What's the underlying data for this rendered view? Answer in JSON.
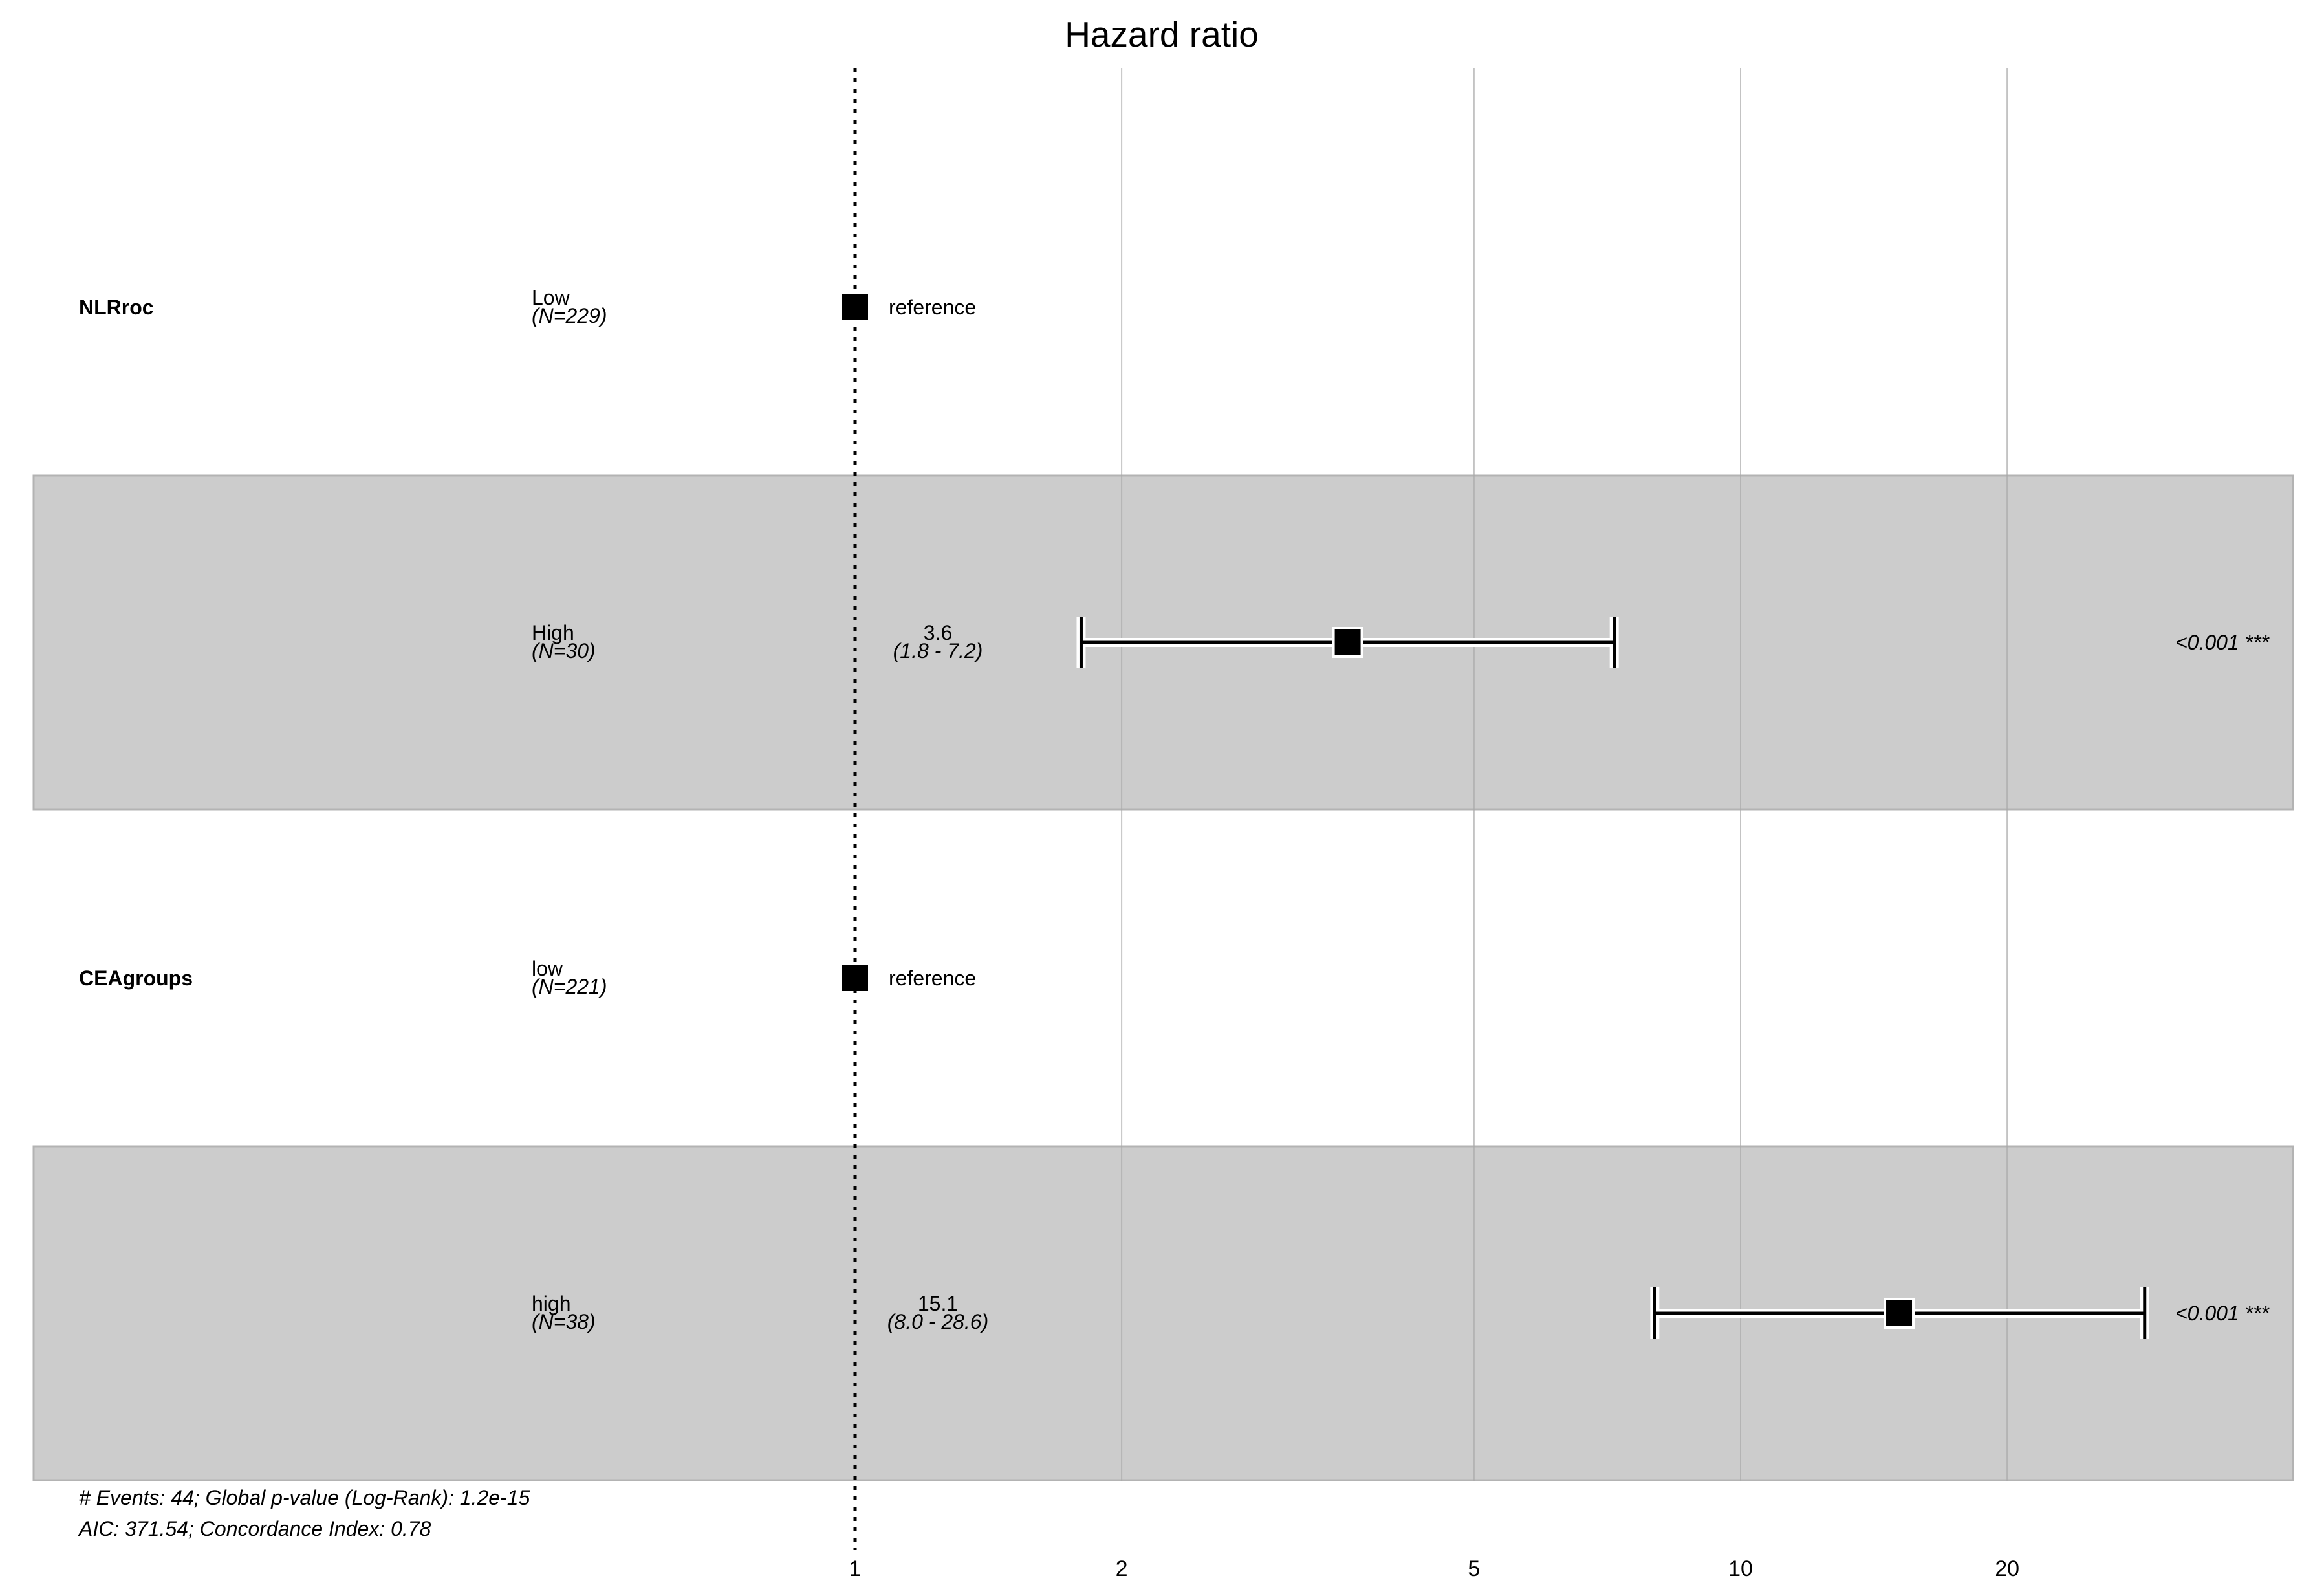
{
  "chart_data": {
    "type": "forest",
    "title": "Hazard ratio",
    "x_scale": "log",
    "x_ticks": [
      1,
      2,
      5,
      10,
      20
    ],
    "x_tick_labels": [
      "1",
      "2",
      "5",
      "10",
      "20"
    ],
    "reference_line": 1,
    "rows": [
      {
        "variable": "NLRroc",
        "level": "Low",
        "n": "(N=229)",
        "hr": 1,
        "is_reference": true,
        "reference_label": "reference",
        "shaded": false
      },
      {
        "variable": "",
        "level": "High",
        "n": "(N=30)",
        "hr": 3.6,
        "lower": 1.8,
        "upper": 7.2,
        "hr_label": "3.6",
        "ci_label": "(1.8 - 7.2)",
        "p_label": "<0.001 ***",
        "is_reference": false,
        "shaded": true
      },
      {
        "variable": "CEAgroups",
        "level": "low",
        "n": "(N=221)",
        "hr": 1,
        "is_reference": true,
        "reference_label": "reference",
        "shaded": false
      },
      {
        "variable": "",
        "level": "high",
        "n": "(N=38)",
        "hr": 15.1,
        "lower": 8.0,
        "upper": 28.6,
        "hr_label": "15.1",
        "ci_label": "(8.0 - 28.6)",
        "p_label": "<0.001 ***",
        "is_reference": false,
        "shaded": true
      }
    ],
    "footer": [
      "# Events: 44; Global p-value (Log-Rank): 1.2e-15",
      "AIC: 371.54; Concordance Index: 0.78"
    ],
    "colors": {
      "shade": "#cccccc",
      "grid": "#aaaaaa",
      "marker": "#000000"
    }
  }
}
